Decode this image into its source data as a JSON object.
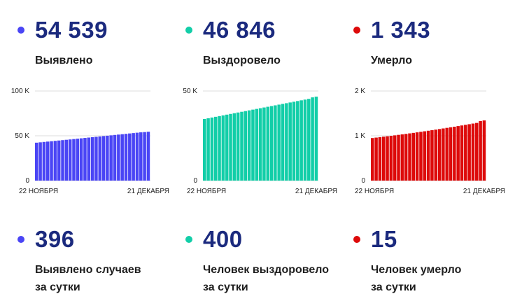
{
  "colors": {
    "blue": "#4a45f5",
    "green": "#12cea8",
    "red": "#dd0a0a",
    "number": "#1b2a7e"
  },
  "top": [
    {
      "value": "54 539",
      "label": "Выявлено",
      "color": "#4a45f5"
    },
    {
      "value": "46 846",
      "label": "Выздоровело",
      "color": "#12cea8"
    },
    {
      "value": "1 343",
      "label": "Умерло",
      "color": "#dd0a0a"
    }
  ],
  "bottom": [
    {
      "value": "396",
      "line1": "Выявлено случаев",
      "line2": "за сутки",
      "color": "#4a45f5"
    },
    {
      "value": "400",
      "line1": "Человек выздоровело",
      "line2": "за сутки",
      "color": "#12cea8"
    },
    {
      "value": "15",
      "line1": "Человек умерло",
      "line2": "за сутки",
      "color": "#dd0a0a"
    }
  ],
  "chart_data": [
    {
      "type": "bar",
      "x_start_label": "22 НОЯБРЯ",
      "x_end_label": "21 ДЕКАБРЯ",
      "y_ticks": [
        "0",
        "50 K",
        "100 K"
      ],
      "y_tick_values": [
        0,
        50000,
        100000
      ],
      "ylim": [
        0,
        100000
      ],
      "color": "#4a45f5",
      "values": [
        42320,
        42720,
        43140,
        43540,
        43940,
        44340,
        44740,
        45150,
        45550,
        45950,
        46370,
        46780,
        47190,
        47610,
        48030,
        48440,
        48850,
        49270,
        49690,
        50100,
        50520,
        50940,
        51360,
        51780,
        52200,
        52620,
        53030,
        53450,
        53870,
        54143,
        54539
      ]
    },
    {
      "type": "bar",
      "x_start_label": "22 НОЯБРЯ",
      "x_end_label": "21 ДЕКАБРЯ",
      "y_ticks": [
        "0",
        "50 K"
      ],
      "y_tick_values": [
        0,
        50000
      ],
      "ylim": [
        0,
        50000
      ],
      "color": "#12cea8",
      "values": [
        34400,
        34800,
        35200,
        35600,
        36000,
        36400,
        36800,
        37200,
        37600,
        38000,
        38400,
        38800,
        39200,
        39600,
        40000,
        40400,
        40800,
        41200,
        41600,
        42000,
        42400,
        42800,
        43200,
        43600,
        44000,
        44400,
        44800,
        45200,
        45600,
        46446,
        46846
      ]
    },
    {
      "type": "bar",
      "x_start_label": "22 НОЯБРЯ",
      "x_end_label": "21 ДЕКАБРЯ",
      "y_ticks": [
        "0",
        "1 K",
        "2 K"
      ],
      "y_tick_values": [
        0,
        1000,
        2000
      ],
      "ylim": [
        0,
        2000
      ],
      "color": "#dd0a0a",
      "values": [
        950,
        960,
        970,
        980,
        990,
        1000,
        1010,
        1021,
        1032,
        1043,
        1054,
        1065,
        1077,
        1089,
        1101,
        1113,
        1125,
        1138,
        1151,
        1164,
        1177,
        1190,
        1203,
        1217,
        1231,
        1245,
        1259,
        1273,
        1287,
        1328,
        1343
      ]
    }
  ]
}
